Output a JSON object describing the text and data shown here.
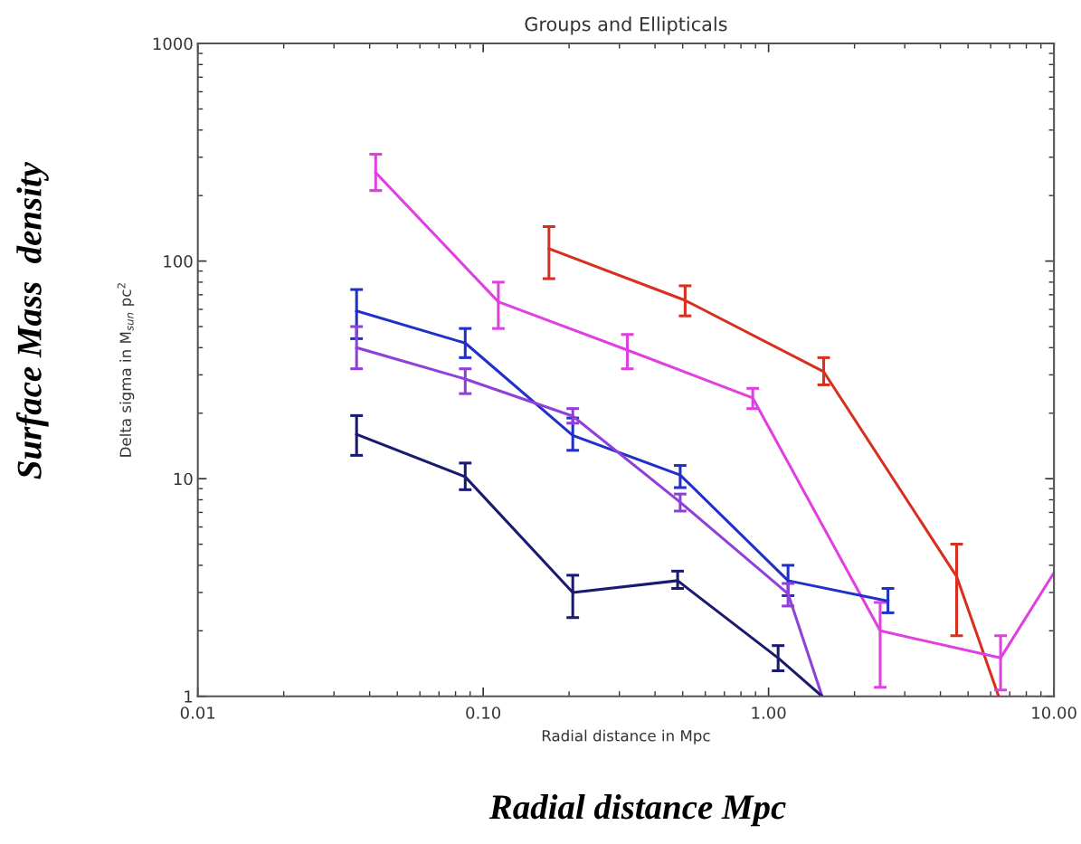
{
  "chart_data": {
    "type": "line",
    "title": "Groups and Ellipticals",
    "xlabel": "Radial distance in Mpc",
    "ylabel": "Delta sigma in M$_{sun}$ pc$^{2}$",
    "annotations": [
      "Surface Mass  density",
      "Radial distance Mpc"
    ],
    "log": "xy",
    "grid": false,
    "marker": "none",
    "line_style": "solid",
    "xlim": [
      0.01,
      10
    ],
    "ylim": [
      1,
      1000
    ],
    "xticks": [
      {
        "value": 0.01,
        "label": "0.01"
      },
      {
        "value": 0.1,
        "label": "0.10"
      },
      {
        "value": 1,
        "label": "1.00"
      },
      {
        "value": 10,
        "label": "10.00"
      }
    ],
    "yticks": [
      1,
      10,
      100,
      1000
    ],
    "series": [
      {
        "color": "#d83020",
        "x": [
          0.17,
          0.51,
          1.56,
          4.56,
          6.4
        ],
        "values": [
          114,
          66,
          31,
          3.55,
          1.0
        ],
        "errors": [
          [
            83,
            144
          ],
          [
            56,
            77
          ],
          [
            27,
            36
          ],
          [
            1.9,
            5.0
          ],
          null
        ]
      },
      {
        "color": "#e040e0",
        "x": [
          0.042,
          0.113,
          0.32,
          0.88,
          2.46,
          6.5,
          10
        ],
        "values": [
          255,
          65,
          39,
          23.5,
          2.0,
          1.5,
          3.7
        ],
        "errors": [
          [
            211,
            310
          ],
          [
            49,
            80
          ],
          [
            32,
            46
          ],
          [
            21,
            26
          ],
          [
            1.1,
            2.7
          ],
          [
            1.07,
            1.9
          ],
          null
        ]
      },
      {
        "color": "#2030c8",
        "x": [
          0.036,
          0.0865,
          0.206,
          0.49,
          1.17,
          2.62
        ],
        "values": [
          59,
          42,
          15.8,
          10.4,
          3.4,
          2.74
        ],
        "errors": [
          [
            44,
            74
          ],
          [
            36,
            49
          ],
          [
            13.5,
            19
          ],
          [
            9.1,
            11.5
          ],
          [
            2.9,
            4.0
          ],
          [
            2.42,
            3.13
          ]
        ]
      },
      {
        "color": "#9040d8",
        "x": [
          0.036,
          0.0865,
          0.206,
          0.49,
          1.17,
          1.54
        ],
        "values": [
          40,
          28.7,
          19.4,
          7.8,
          2.96,
          1.0
        ],
        "errors": [
          [
            32,
            50
          ],
          [
            24.6,
            32
          ],
          [
            18,
            21
          ],
          [
            7.1,
            8.5
          ],
          [
            2.6,
            3.3
          ],
          null
        ]
      },
      {
        "color": "#1a1a70",
        "x": [
          0.036,
          0.0865,
          0.206,
          0.48,
          1.08,
          1.54
        ],
        "values": [
          16,
          10.2,
          3.0,
          3.4,
          1.5,
          1.0
        ],
        "errors": [
          [
            12.8,
            19.5
          ],
          [
            8.9,
            11.8
          ],
          [
            2.3,
            3.6
          ],
          [
            3.13,
            3.76
          ],
          [
            1.31,
            1.71
          ],
          null
        ]
      }
    ]
  }
}
